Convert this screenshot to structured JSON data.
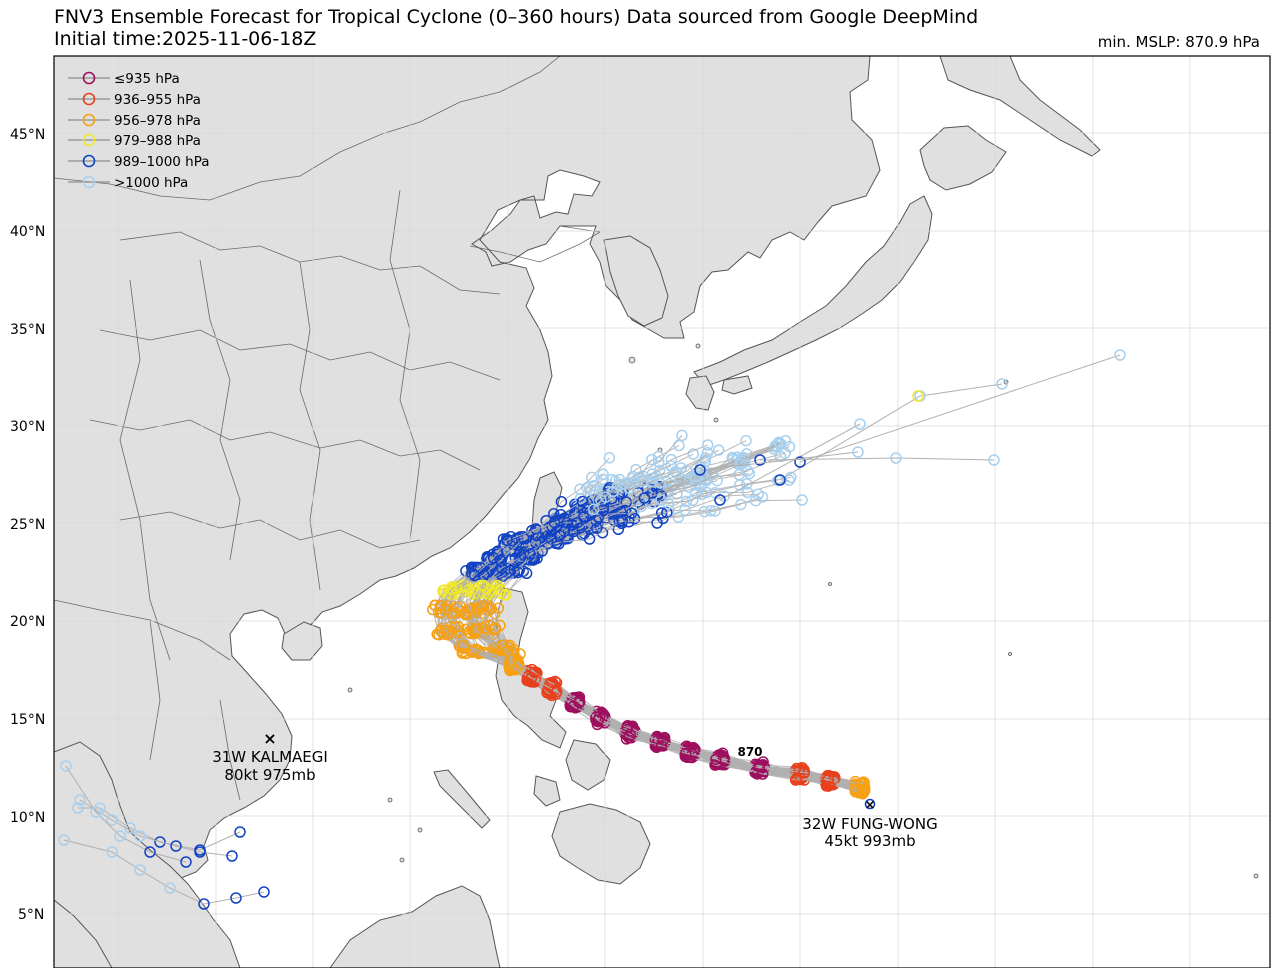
{
  "header": {
    "title": "FNV3 Ensemble Forecast for Tropical Cyclone (0–360 hours) Data sourced from Google DeepMind",
    "initial_time": "Initial time:2025-11-06-18Z",
    "min_mslp": "min. MSLP: 870.9 hPa"
  },
  "legend": [
    {
      "label": "≤935 hPa",
      "color": "#9e0f5e"
    },
    {
      "label": "936–955 hPa",
      "color": "#e8401c"
    },
    {
      "label": "956–978 hPa",
      "color": "#f7a012"
    },
    {
      "label": "979–988 hPa",
      "color": "#f2e82a"
    },
    {
      "label": "989–1000 hPa",
      "color": "#1242c4"
    },
    {
      "label": ">1000 hPa",
      "color": "#a8d0ee"
    }
  ],
  "lat_ticks": [
    "45°N",
    "40°N",
    "35°N",
    "30°N",
    "25°N",
    "20°N",
    "15°N",
    "10°N",
    "5°N"
  ],
  "storms": [
    {
      "id": "kalmaegi",
      "name": "31W KALMAEGI",
      "info": "80kt 975mb"
    },
    {
      "id": "fungwong",
      "name": "32W FUNG-WONG",
      "info": "45kt 993mb"
    }
  ],
  "annotation": "870",
  "colors": {
    "land": "#e0e0e0",
    "coast": "#555555",
    "track_line": "#b0b0b0",
    "grid": "#d9d9d9"
  }
}
